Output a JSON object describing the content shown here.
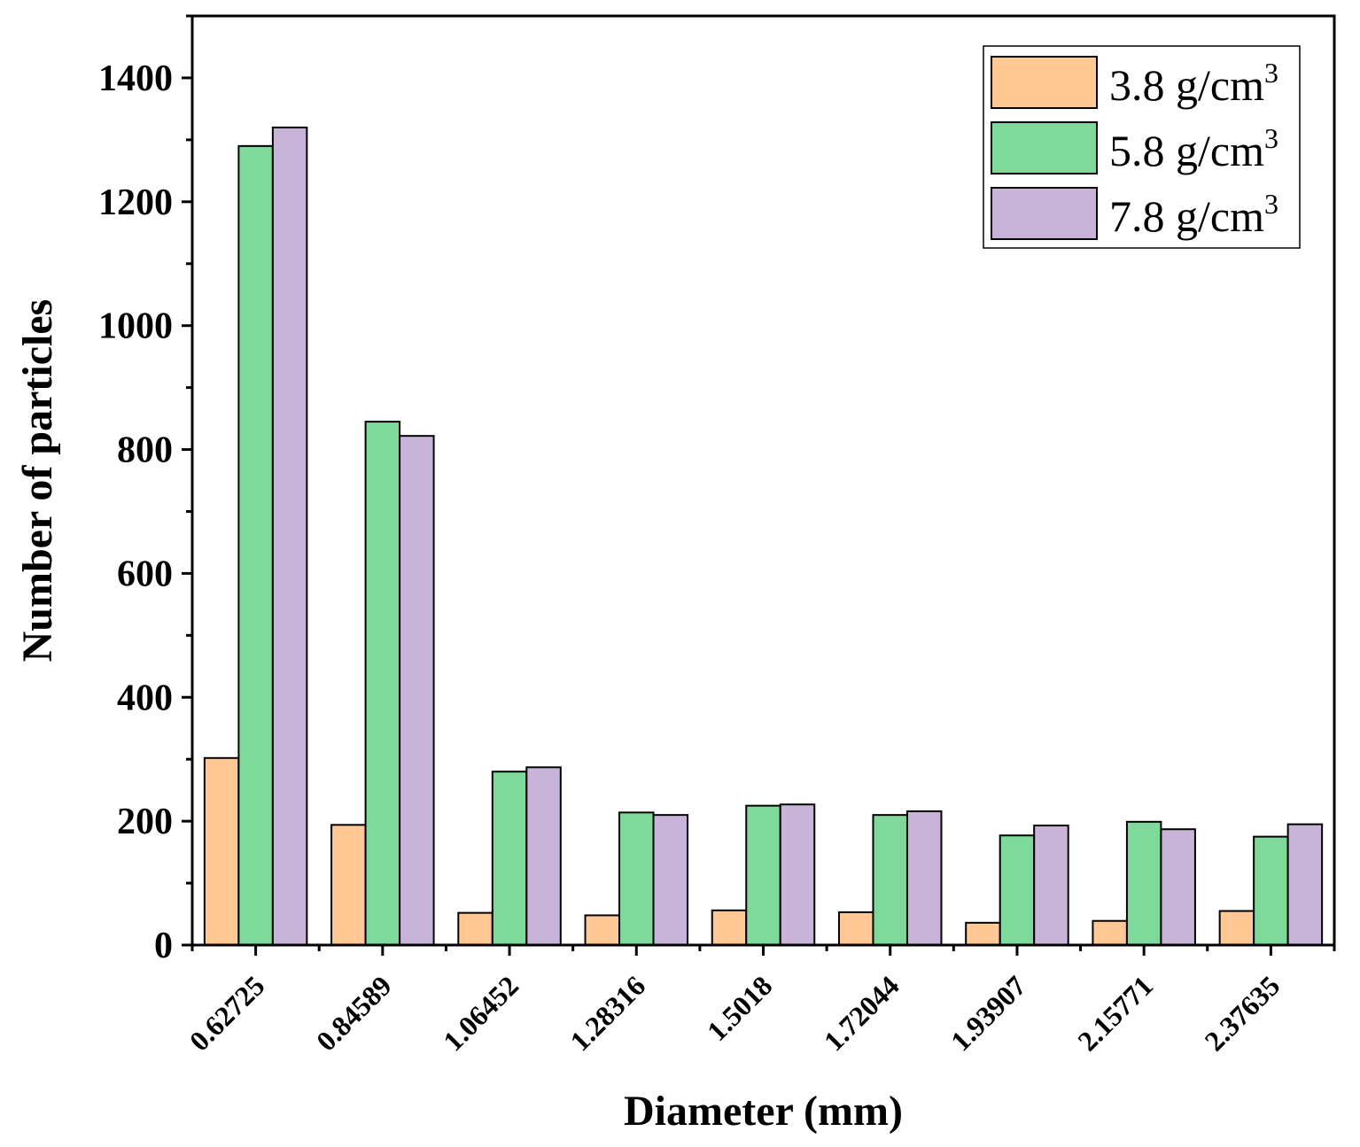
{
  "chart_data": {
    "type": "bar",
    "title": "",
    "xlabel": "Diameter (mm)",
    "ylabel": "Number of particles",
    "ylim": [
      0,
      1500
    ],
    "yticks": [
      0,
      200,
      400,
      600,
      800,
      1000,
      1200,
      1400
    ],
    "grid": false,
    "legend_position": "top-right",
    "categories": [
      "0.62725",
      "0.84589",
      "1.06452",
      "1.28316",
      "1.5018",
      "1.72044",
      "1.93907",
      "2.15771",
      "2.37635"
    ],
    "series": [
      {
        "name": "3.8 g/cm",
        "superscript": "3",
        "color": "#FFC894",
        "values": [
          302,
          194,
          52,
          48,
          56,
          53,
          36,
          39,
          55
        ]
      },
      {
        "name": "5.8 g/cm",
        "superscript": "3",
        "color": "#7FD99A",
        "values": [
          1290,
          845,
          280,
          214,
          225,
          210,
          177,
          199,
          175
        ]
      },
      {
        "name": "7.8 g/cm",
        "superscript": "3",
        "color": "#C8B4D9",
        "values": [
          1320,
          822,
          287,
          210,
          227,
          216,
          193,
          187,
          195
        ]
      }
    ]
  }
}
